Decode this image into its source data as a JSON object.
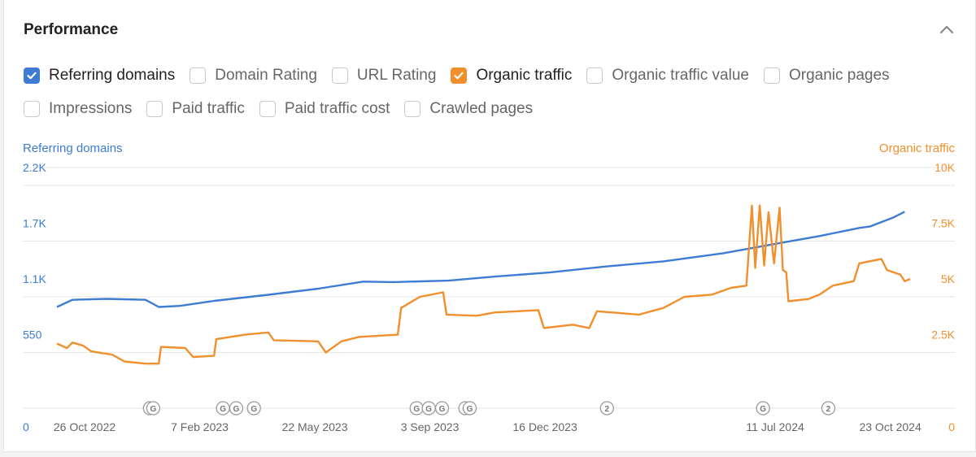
{
  "panel": {
    "title": "Performance"
  },
  "metrics": [
    [
      {
        "label": "Referring domains",
        "checked": true,
        "color": "#3d7bd4"
      },
      {
        "label": "Domain Rating",
        "checked": false
      },
      {
        "label": "URL Rating",
        "checked": false
      },
      {
        "label": "Organic traffic",
        "checked": true,
        "color": "#f08f2c"
      },
      {
        "label": "Organic traffic value",
        "checked": false
      },
      {
        "label": "Organic pages",
        "checked": false
      }
    ],
    [
      {
        "label": "Impressions",
        "checked": false
      },
      {
        "label": "Paid traffic",
        "checked": false
      },
      {
        "label": "Paid traffic cost",
        "checked": false
      },
      {
        "label": "Crawled pages",
        "checked": false
      }
    ]
  ],
  "colors": {
    "referring": "#3d7bd4",
    "organic": "#f08f2c",
    "grid": "#e6e6e6",
    "axis_text": "#666666"
  },
  "chart_data": {
    "type": "line",
    "left_axis": {
      "label": "Referring domains",
      "ticks": [
        "0",
        "550",
        "1.1K",
        "1.7K",
        "2.2K"
      ],
      "range": [
        0,
        2200
      ]
    },
    "right_axis": {
      "label": "Organic traffic",
      "ticks": [
        "0",
        "2.5K",
        "5K",
        "7.5K",
        "10K"
      ],
      "range": [
        0,
        10000
      ]
    },
    "x_ticks": [
      {
        "label": "26 Oct 2022",
        "date": "2022-10-26"
      },
      {
        "label": "7 Feb 2023",
        "date": "2023-02-07"
      },
      {
        "label": "22 May 2023",
        "date": "2023-05-22"
      },
      {
        "label": "3 Sep 2023",
        "date": "2023-09-03"
      },
      {
        "label": "16 Dec 2023",
        "date": "2023-12-16"
      },
      {
        "label": "11 Jul 2024",
        "date": "2024-07-11"
      },
      {
        "label": "23 Oct 2024",
        "date": "2024-10-23"
      }
    ],
    "x_range": [
      "2022-10-01",
      "2024-11-18"
    ],
    "grid": true,
    "series": [
      {
        "name": "Referring domains",
        "axis": "left",
        "points": [
          [
            "2022-10-01",
            1000
          ],
          [
            "2022-10-15",
            1070
          ],
          [
            "2022-11-15",
            1080
          ],
          [
            "2022-12-20",
            1070
          ],
          [
            "2023-01-01",
            1000
          ],
          [
            "2023-01-20",
            1010
          ],
          [
            "2023-02-20",
            1060
          ],
          [
            "2023-04-10",
            1120
          ],
          [
            "2023-05-25",
            1180
          ],
          [
            "2023-07-05",
            1250
          ],
          [
            "2023-08-01",
            1245
          ],
          [
            "2023-09-20",
            1260
          ],
          [
            "2023-11-01",
            1300
          ],
          [
            "2023-12-20",
            1340
          ],
          [
            "2024-02-10",
            1400
          ],
          [
            "2024-04-01",
            1450
          ],
          [
            "2024-05-25",
            1530
          ],
          [
            "2024-07-10",
            1620
          ],
          [
            "2024-08-20",
            1700
          ],
          [
            "2024-09-25",
            1780
          ],
          [
            "2024-10-05",
            1795
          ],
          [
            "2024-10-25",
            1880
          ],
          [
            "2024-11-05",
            1940
          ]
        ]
      },
      {
        "name": "Organic traffic",
        "axis": "right",
        "points": [
          [
            "2022-10-01",
            2900
          ],
          [
            "2022-10-10",
            2700
          ],
          [
            "2022-10-15",
            2950
          ],
          [
            "2022-10-25",
            2800
          ],
          [
            "2022-11-01",
            2550
          ],
          [
            "2022-11-20",
            2400
          ],
          [
            "2022-12-01",
            2100
          ],
          [
            "2022-12-20",
            2000
          ],
          [
            "2023-01-01",
            2000
          ],
          [
            "2023-01-03",
            2750
          ],
          [
            "2023-01-25",
            2700
          ],
          [
            "2023-02-01",
            2300
          ],
          [
            "2023-02-20",
            2350
          ],
          [
            "2023-02-22",
            3100
          ],
          [
            "2023-03-20",
            3300
          ],
          [
            "2023-04-10",
            3400
          ],
          [
            "2023-04-15",
            3050
          ],
          [
            "2023-05-25",
            3000
          ],
          [
            "2023-06-01",
            2500
          ],
          [
            "2023-06-15",
            3000
          ],
          [
            "2023-07-01",
            3200
          ],
          [
            "2023-08-05",
            3300
          ],
          [
            "2023-08-08",
            4500
          ],
          [
            "2023-08-25",
            5000
          ],
          [
            "2023-09-15",
            5200
          ],
          [
            "2023-09-18",
            4200
          ],
          [
            "2023-10-15",
            4150
          ],
          [
            "2023-11-01",
            4300
          ],
          [
            "2023-12-10",
            4400
          ],
          [
            "2023-12-15",
            3600
          ],
          [
            "2024-01-10",
            3750
          ],
          [
            "2024-01-25",
            3600
          ],
          [
            "2024-02-01",
            4350
          ],
          [
            "2024-03-10",
            4200
          ],
          [
            "2024-04-01",
            4500
          ],
          [
            "2024-04-20",
            5000
          ],
          [
            "2024-05-15",
            5100
          ],
          [
            "2024-06-01",
            5400
          ],
          [
            "2024-06-15",
            5500
          ],
          [
            "2024-06-20",
            9100
          ],
          [
            "2024-06-23",
            6300
          ],
          [
            "2024-06-27",
            9100
          ],
          [
            "2024-07-01",
            6400
          ],
          [
            "2024-07-05",
            8800
          ],
          [
            "2024-07-10",
            6500
          ],
          [
            "2024-07-15",
            9000
          ],
          [
            "2024-07-18",
            6200
          ],
          [
            "2024-07-21",
            6100
          ],
          [
            "2024-07-23",
            4800
          ],
          [
            "2024-08-10",
            4900
          ],
          [
            "2024-08-20",
            5100
          ],
          [
            "2024-09-01",
            5500
          ],
          [
            "2024-09-20",
            5700
          ],
          [
            "2024-09-25",
            6500
          ],
          [
            "2024-10-05",
            6600
          ],
          [
            "2024-10-15",
            6700
          ],
          [
            "2024-10-20",
            6200
          ],
          [
            "2024-11-01",
            6000
          ],
          [
            "2024-11-05",
            5700
          ],
          [
            "2024-11-10",
            5800
          ]
        ]
      }
    ],
    "annotations": [
      {
        "label": "G",
        "date": "2022-12-24"
      },
      {
        "label": "G",
        "date": "2022-12-27"
      },
      {
        "label": "G",
        "date": "2023-02-28"
      },
      {
        "label": "G",
        "date": "2023-03-12"
      },
      {
        "label": "G",
        "date": "2023-03-28"
      },
      {
        "label": "G",
        "date": "2023-08-22"
      },
      {
        "label": "G",
        "date": "2023-09-02"
      },
      {
        "label": "G",
        "date": "2023-09-14"
      },
      {
        "label": "G",
        "date": "2023-10-05"
      },
      {
        "label": "G",
        "date": "2023-10-09"
      },
      {
        "label": "2",
        "date": "2024-02-10"
      },
      {
        "label": "G",
        "date": "2024-06-30"
      },
      {
        "label": "2",
        "date": "2024-08-28"
      }
    ]
  }
}
